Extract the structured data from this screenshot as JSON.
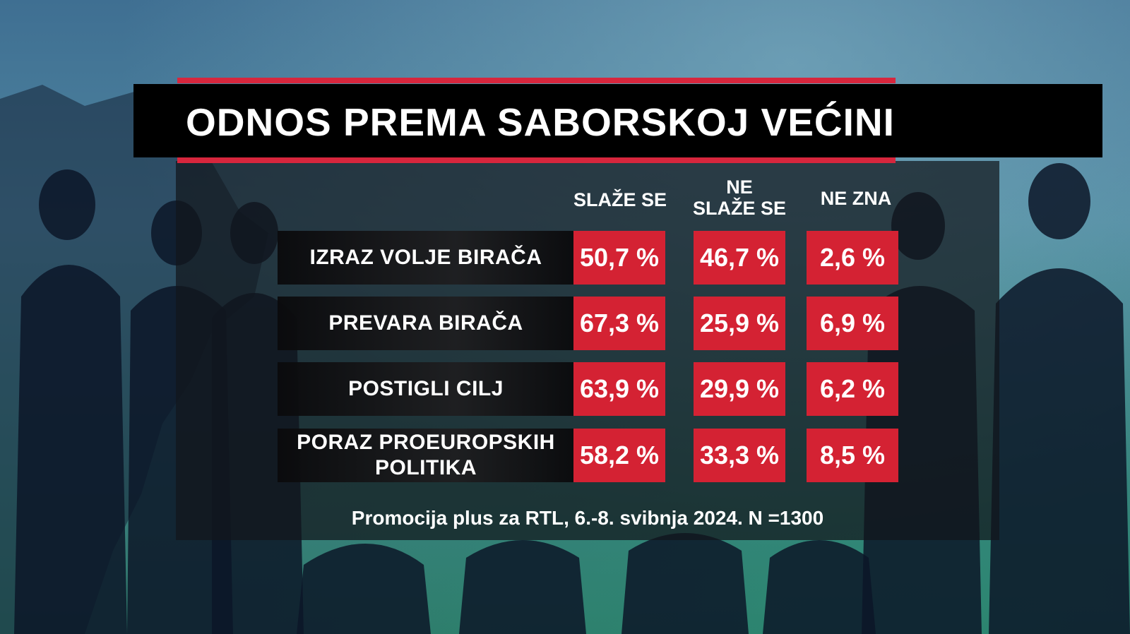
{
  "title": "ODNOS PREMA SABORSKOJ VEĆINI",
  "columns": [
    "SLAŽE SE",
    "NE SLAŽE SE",
    "NE ZNA"
  ],
  "column_lines": [
    [
      "SLAŽE SE"
    ],
    [
      "NE",
      "SLAŽE SE"
    ],
    [
      "NE ZNA"
    ]
  ],
  "rows": [
    {
      "lines": [
        "IZRAZ VOLJE BIRAČA"
      ],
      "values": [
        "50,7 %",
        "46,7 %",
        "2,6 %"
      ]
    },
    {
      "lines": [
        "PREVARA BIRAČA"
      ],
      "values": [
        "67,3 %",
        "25,9 %",
        "6,9 %"
      ]
    },
    {
      "lines": [
        "POSTIGLI CILJ"
      ],
      "values": [
        "63,9 %",
        "29,9 %",
        "6,2 %"
      ]
    },
    {
      "lines": [
        "PORAZ PROEUROPSKIH",
        "POLITIKA"
      ],
      "values": [
        "58,2 %",
        "33,3 %",
        "8,5 %"
      ]
    }
  ],
  "source": "Promocija plus za RTL, 6.-8. svibnja 2024. N =1300",
  "colors": {
    "accent_red": "#d42233",
    "title_bar": "#000000",
    "background": "#4f86a0"
  },
  "chart_data": {
    "type": "table",
    "title": "ODNOS PREMA SABORSKOJ VEĆINI",
    "columns": [
      "SLAŽE SE",
      "NE SLAŽE SE",
      "NE ZNA"
    ],
    "categories": [
      "IZRAZ VOLJE BIRAČA",
      "PREVARA BIRAČA",
      "POSTIGLI CILJ",
      "PORAZ PROEUROPSKIH POLITIKA"
    ],
    "series": [
      {
        "name": "SLAŽE SE",
        "values": [
          50.7,
          67.3,
          63.9,
          58.2
        ]
      },
      {
        "name": "NE SLAŽE SE",
        "values": [
          46.7,
          25.9,
          29.9,
          33.3
        ]
      },
      {
        "name": "NE ZNA",
        "values": [
          2.6,
          6.9,
          6.2,
          8.5
        ]
      }
    ],
    "unit": "%"
  }
}
